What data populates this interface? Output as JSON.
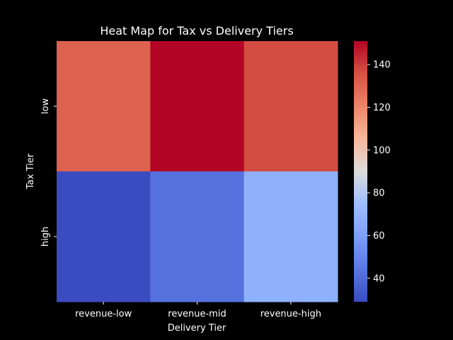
{
  "chart_data": {
    "type": "heatmap",
    "title": "Heat Map for Tax vs Delivery Tiers",
    "xlabel": "Delivery Tier",
    "ylabel": "Tax Tier",
    "x_categories": [
      "revenue-low",
      "revenue-mid",
      "revenue-high"
    ],
    "y_categories": [
      "low",
      "high"
    ],
    "values": [
      [
        131,
        151,
        137
      ],
      [
        29,
        42,
        68
      ]
    ],
    "colormap": "coolwarm",
    "vmin": 29,
    "vmax": 151,
    "colorbar_ticks": [
      {
        "value": 40,
        "label": "40"
      },
      {
        "value": 60,
        "label": "60"
      },
      {
        "value": 80,
        "label": "80"
      },
      {
        "value": 100,
        "label": "100"
      },
      {
        "value": 120,
        "label": "120"
      },
      {
        "value": 140,
        "label": "140"
      }
    ],
    "background_color": "#000000",
    "text_color": "#ffffff"
  }
}
